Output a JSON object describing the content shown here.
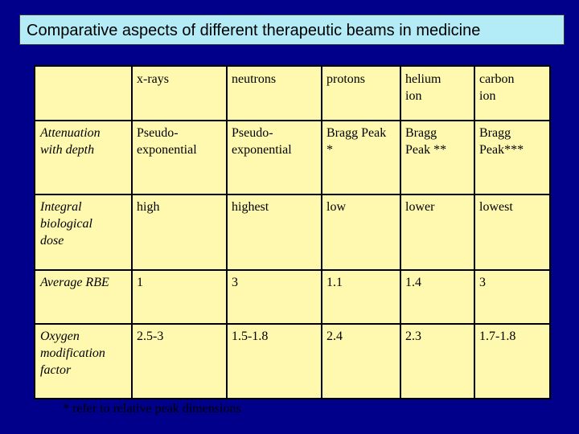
{
  "title": "Comparative aspects of different therapeutic beams in medicine",
  "table": {
    "columns": [
      "",
      "x-rays",
      "neutrons",
      "protons",
      "helium ion",
      "carbon ion"
    ],
    "column_lines": [
      [],
      [
        "x-rays"
      ],
      [
        "neutrons"
      ],
      [
        "protons"
      ],
      [
        "helium",
        "ion"
      ],
      [
        "carbon",
        "ion"
      ]
    ],
    "rows": [
      {
        "label_lines": [
          "Attenuation",
          "with depth"
        ],
        "cells": [
          [
            "Pseudo-",
            "exponential"
          ],
          [
            "Pseudo-",
            "exponential"
          ],
          [
            "Bragg Peak",
            "*"
          ],
          [
            "Bragg",
            "Peak **"
          ],
          [
            "Bragg",
            "Peak***"
          ]
        ]
      },
      {
        "label_lines": [
          "Integral",
          "biological",
          "dose"
        ],
        "cells": [
          [
            "high"
          ],
          [
            "highest"
          ],
          [
            "low"
          ],
          [
            "lower"
          ],
          [
            "lowest"
          ]
        ]
      },
      {
        "label_lines": [
          "Average RBE"
        ],
        "cells": [
          [
            "1"
          ],
          [
            "3"
          ],
          [
            "1.1"
          ],
          [
            "1.4"
          ],
          [
            "3"
          ]
        ]
      },
      {
        "label_lines": [
          "Oxygen",
          "modification",
          "factor"
        ],
        "cells": [
          [
            "2.5-3"
          ],
          [
            "1.5-1.8"
          ],
          [
            "2.4"
          ],
          [
            "2.3"
          ],
          [
            "1.7-1.8"
          ]
        ]
      }
    ]
  },
  "footnote": "* refer to relative peak dimensions"
}
